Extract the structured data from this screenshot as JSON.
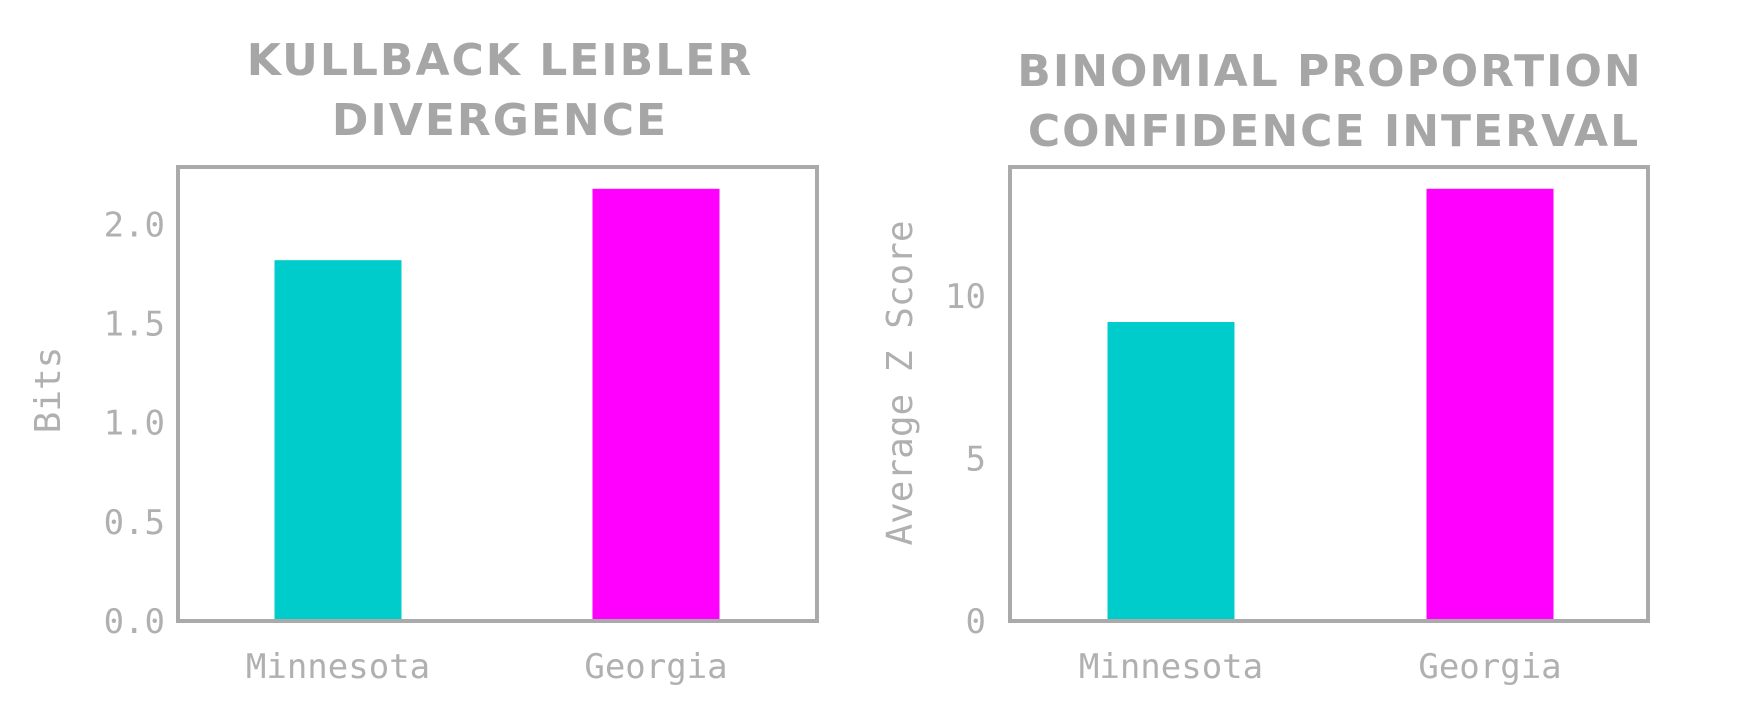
{
  "chart_data": [
    {
      "type": "bar",
      "title_lines": [
        "KULLBACK LEIBLER",
        "DIVERGENCE"
      ],
      "ylabel": "Bits",
      "categories": [
        "Minnesota",
        "Georgia"
      ],
      "values": [
        1.82,
        2.18
      ],
      "colors": [
        "#00cccc",
        "#ff00ff"
      ],
      "ylim": [
        0,
        2.29
      ],
      "yticks": [
        0.0,
        0.5,
        1.0,
        1.5,
        2.0
      ],
      "ytick_labels": [
        "0.0",
        "0.5",
        "1.0",
        "1.5",
        "2.0"
      ],
      "grid": false
    },
    {
      "type": "bar",
      "title_lines": [
        "BINOMIAL PROPORTION",
        "CONFIDENCE INTERVAL"
      ],
      "ylabel": "Average Z Score",
      "categories": [
        "Minnesota",
        "Georgia"
      ],
      "values": [
        9.2,
        13.3
      ],
      "colors": [
        "#00cccc",
        "#ff00ff"
      ],
      "ylim": [
        0,
        13.97
      ],
      "yticks": [
        0,
        5,
        10
      ],
      "ytick_labels": [
        "0",
        "5",
        "10"
      ],
      "grid": false
    }
  ]
}
